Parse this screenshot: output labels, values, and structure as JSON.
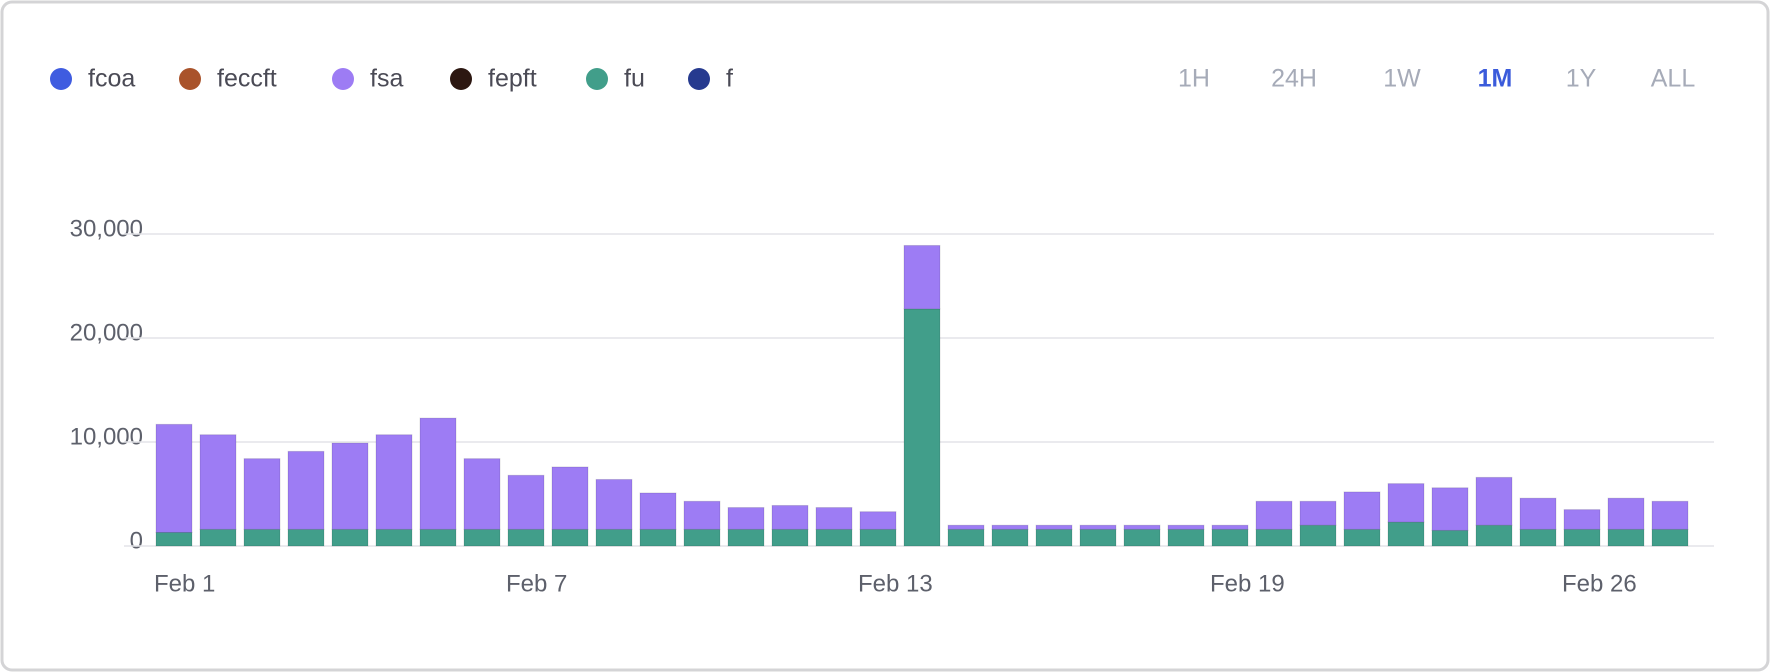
{
  "chart_data": {
    "type": "stacked_bar",
    "categories": [
      "Feb 1",
      null,
      null,
      null,
      null,
      null,
      null,
      null,
      "Feb 7",
      null,
      null,
      null,
      null,
      null,
      null,
      null,
      "Feb 13",
      null,
      null,
      null,
      null,
      null,
      null,
      null,
      "Feb 19",
      null,
      null,
      null,
      null,
      null,
      null,
      null,
      "Feb 26",
      null,
      null
    ],
    "series": [
      {
        "name": "fcoa",
        "color": "#3f5ce0",
        "values": [
          0,
          0,
          0,
          0,
          0,
          0,
          0,
          0,
          0,
          0,
          0,
          0,
          0,
          0,
          0,
          0,
          0,
          0,
          0,
          0,
          0,
          0,
          0,
          0,
          0,
          0,
          0,
          0,
          0,
          0,
          0,
          0,
          0,
          0,
          0
        ]
      },
      {
        "name": "feccft",
        "color": "#a9532b",
        "values": [
          0,
          0,
          0,
          0,
          0,
          0,
          0,
          0,
          0,
          0,
          0,
          0,
          0,
          0,
          0,
          0,
          0,
          0,
          0,
          0,
          0,
          0,
          0,
          0,
          0,
          0,
          0,
          0,
          0,
          0,
          0,
          0,
          0,
          0,
          0
        ]
      },
      {
        "name": "fsa",
        "color": "#9d7cf4",
        "values": [
          10400,
          9100,
          6800,
          7500,
          8300,
          9100,
          10700,
          6800,
          5200,
          6000,
          4800,
          3500,
          2700,
          2100,
          2300,
          2100,
          1700,
          6100,
          400,
          400,
          400,
          400,
          400,
          400,
          400,
          2700,
          2300,
          3600,
          3700,
          4100,
          4600,
          3000,
          1900,
          3000,
          2700
        ]
      },
      {
        "name": "fepft",
        "color": "#2c1711",
        "values": [
          0,
          0,
          0,
          0,
          0,
          0,
          0,
          0,
          0,
          0,
          0,
          0,
          0,
          0,
          0,
          0,
          0,
          0,
          0,
          0,
          0,
          0,
          0,
          0,
          0,
          0,
          0,
          0,
          0,
          0,
          0,
          0,
          0,
          0,
          0
        ]
      },
      {
        "name": "fu",
        "color": "#419e8a",
        "values": [
          1300,
          1600,
          1600,
          1600,
          1600,
          1600,
          1600,
          1600,
          1600,
          1600,
          1600,
          1600,
          1600,
          1600,
          1600,
          1600,
          1600,
          22800,
          1600,
          1600,
          1600,
          1600,
          1600,
          1600,
          1600,
          1600,
          2000,
          1600,
          2300,
          1500,
          2000,
          1600,
          1600,
          1600,
          1600
        ]
      },
      {
        "name": "f",
        "color": "#263a8f",
        "values": [
          0,
          0,
          0,
          0,
          0,
          0,
          0,
          0,
          0,
          0,
          0,
          0,
          0,
          0,
          0,
          0,
          0,
          0,
          0,
          0,
          0,
          0,
          0,
          0,
          0,
          0,
          0,
          0,
          0,
          0,
          0,
          0,
          0,
          0,
          0
        ]
      }
    ],
    "ylim": [
      0,
      30000
    ],
    "yticks": [
      0,
      {
        "value": 10000,
        "label": "10,000"
      },
      {
        "value": 20000,
        "label": "20,000"
      },
      {
        "value": 30000,
        "label": "30,000"
      }
    ],
    "grid": true,
    "range_buttons": [
      "1H",
      "24H",
      "1W",
      "1M",
      "1Y",
      "ALL"
    ],
    "active_range": 3
  }
}
